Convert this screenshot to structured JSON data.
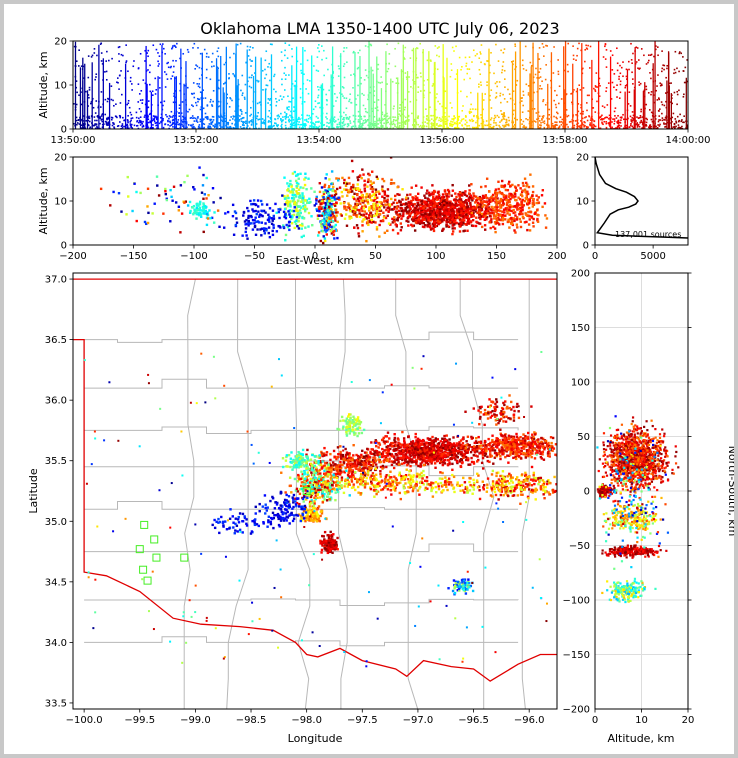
{
  "title": "Oklahoma LMA 1350-1400 UTC July 06, 2023",
  "chart_data": [
    {
      "panel": "time-altitude",
      "type": "scatter",
      "ylabel": "Altitude, km",
      "xlim": [
        "13:50:00",
        "14:00:00"
      ],
      "ylim": [
        0,
        20
      ],
      "x_ticks": [
        "13:50:00",
        "13:52:00",
        "13:54:00",
        "13:56:00",
        "13:58:00",
        "14:00:00"
      ],
      "y_ticks": [
        "0",
        "10",
        "20"
      ],
      "colormap": "jet, colored by time"
    },
    {
      "panel": "east-west-altitude",
      "type": "scatter",
      "xlabel": "East-West, km",
      "ylabel": "Altitude, km",
      "xlim": [
        -200,
        200
      ],
      "ylim": [
        0,
        20
      ],
      "x_ticks": [
        "−200",
        "−150",
        "−100",
        "−50",
        "0",
        "50",
        "100",
        "150",
        "200"
      ],
      "y_ticks": [
        "0",
        "10",
        "20"
      ]
    },
    {
      "panel": "altitude-histogram",
      "type": "line",
      "annotation": "137,001 sources",
      "xlim": [
        0,
        8000
      ],
      "ylim": [
        0,
        20
      ],
      "x_ticks": [
        "0",
        "5000"
      ],
      "y_ticks": [
        "0",
        "10",
        "20"
      ],
      "profile": [
        [
          0,
          20
        ],
        [
          100,
          18.5
        ],
        [
          400,
          16
        ],
        [
          900,
          14
        ],
        [
          1800,
          12.8
        ],
        [
          2700,
          12
        ],
        [
          3400,
          11
        ],
        [
          3700,
          10
        ],
        [
          3500,
          9.3
        ],
        [
          2900,
          8.6
        ],
        [
          2000,
          8
        ],
        [
          1300,
          7
        ],
        [
          800,
          5
        ],
        [
          400,
          3.5
        ],
        [
          200,
          2.8
        ],
        [
          1500,
          2.2
        ],
        [
          6000,
          1.8
        ],
        [
          8000,
          1.6
        ]
      ]
    },
    {
      "panel": "plan-view",
      "type": "scatter",
      "xlabel": "Longitude",
      "ylabel": "Latitude",
      "xlim": [
        -100.1,
        -95.75
      ],
      "ylim": [
        33.45,
        37.05
      ],
      "x_ticks": [
        "−100.0",
        "−99.5",
        "−99.0",
        "−98.5",
        "−98.0",
        "−97.5",
        "−97.0",
        "−96.5",
        "−96.0"
      ],
      "y_ticks": [
        "33.5",
        "34.0",
        "34.5",
        "35.0",
        "35.5",
        "36.0",
        "36.5",
        "37.0"
      ],
      "stations": [
        [
          -99.46,
          34.97
        ],
        [
          -99.37,
          34.85
        ],
        [
          -99.35,
          34.7
        ],
        [
          -99.5,
          34.77
        ],
        [
          -99.47,
          34.6
        ],
        [
          -99.43,
          34.51
        ],
        [
          -99.1,
          34.7
        ],
        [
          -98.0,
          35.25
        ]
      ]
    },
    {
      "panel": "altitude-north-south",
      "type": "scatter",
      "xlabel": "Altitude, km",
      "ylabel": "North-South, km",
      "xlim": [
        0,
        20
      ],
      "ylim": [
        -200,
        200
      ],
      "x_ticks": [
        "0",
        "10",
        "20"
      ],
      "y_ticks": [
        "−200",
        "−150",
        "−100",
        "−50",
        "0",
        "50",
        "100",
        "150",
        "200"
      ]
    }
  ]
}
